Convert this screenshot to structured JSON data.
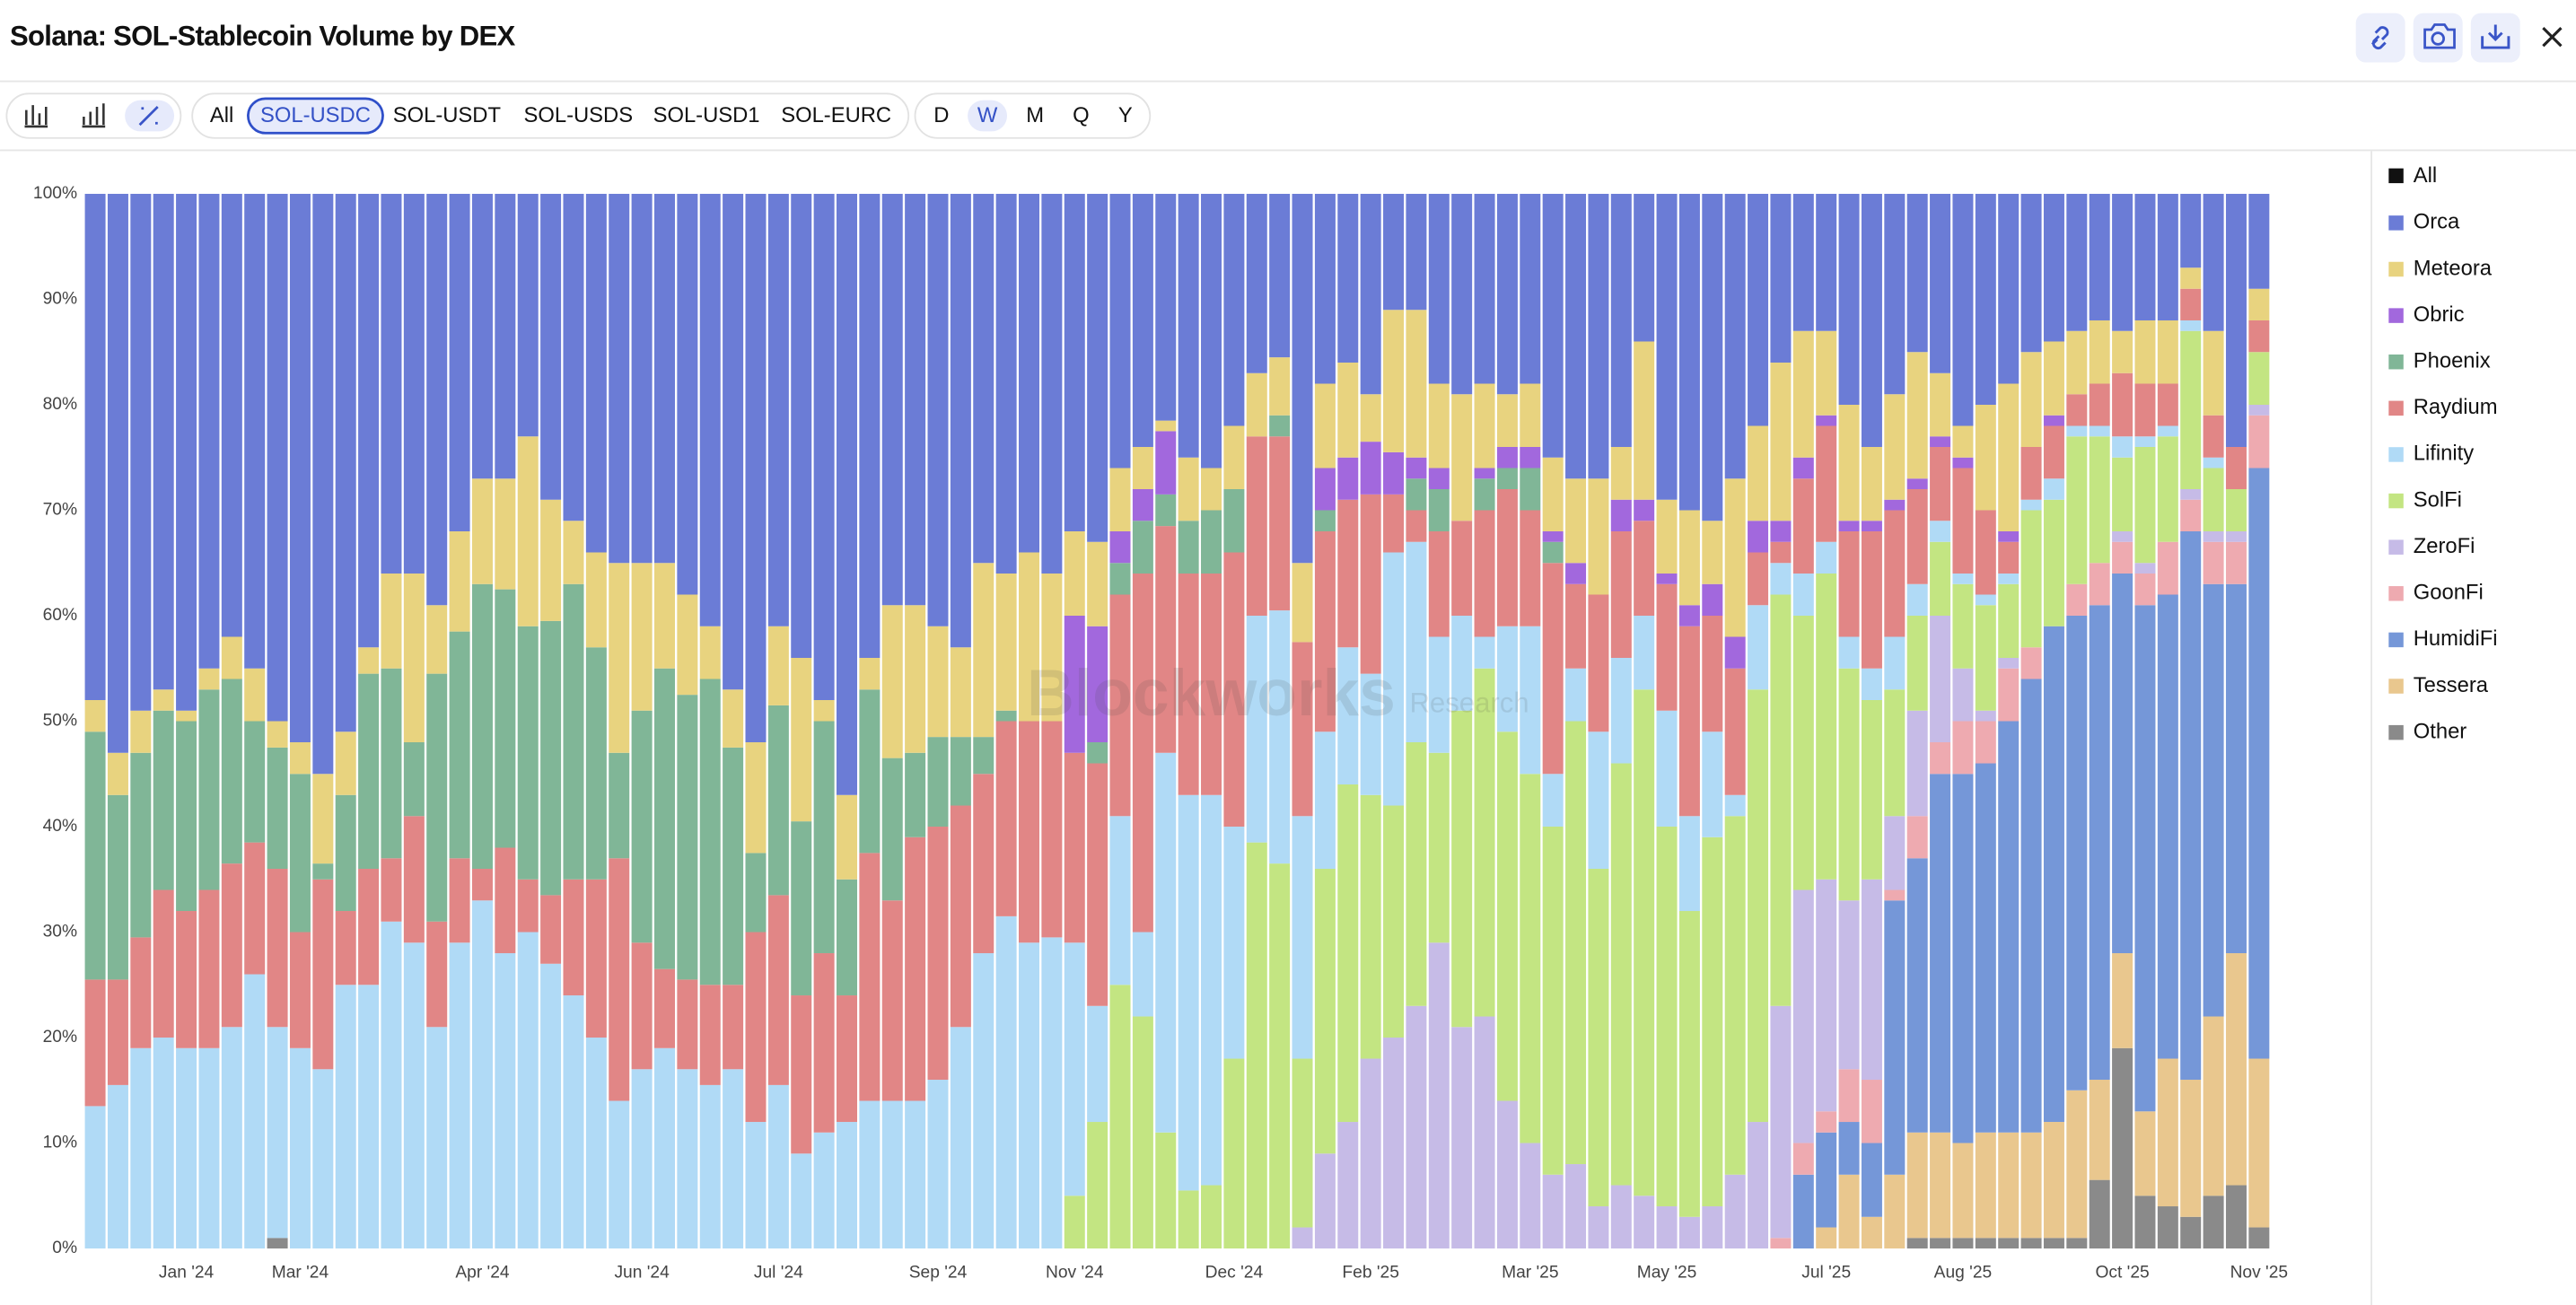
{
  "header": {
    "title": "Solana: SOL-Stablecoin Volume by DEX"
  },
  "toolbar": {
    "pairs": [
      {
        "label": "All",
        "selected": false
      },
      {
        "label": "SOL-USDC",
        "selected": true
      },
      {
        "label": "SOL-USDT",
        "selected": false
      },
      {
        "label": "SOL-USDS",
        "selected": false
      },
      {
        "label": "SOL-USD1",
        "selected": false
      },
      {
        "label": "SOL-EURC",
        "selected": false
      }
    ],
    "intervals": [
      {
        "label": "D",
        "selected": false
      },
      {
        "label": "W",
        "selected": true
      },
      {
        "label": "M",
        "selected": false
      },
      {
        "label": "Q",
        "selected": false
      },
      {
        "label": "Y",
        "selected": false
      }
    ]
  },
  "chart_data": {
    "type": "stacked_bar_percent",
    "watermark": {
      "brand": "Blockworks",
      "suffix": "Research"
    },
    "legend_toggle": "All",
    "legend_position": "right",
    "grid": false,
    "ylim": [
      0,
      100
    ],
    "yticks": [
      {
        "value": 0,
        "label": "0%"
      },
      {
        "value": 10,
        "label": "10%"
      },
      {
        "value": 20,
        "label": "20%"
      },
      {
        "value": 30,
        "label": "30%"
      },
      {
        "value": 40,
        "label": "40%"
      },
      {
        "value": 50,
        "label": "50%"
      },
      {
        "value": 60,
        "label": "60%"
      },
      {
        "value": 70,
        "label": "70%"
      },
      {
        "value": 80,
        "label": "80%"
      },
      {
        "value": 90,
        "label": "90%"
      },
      {
        "value": 100,
        "label": "100%"
      }
    ],
    "categories": [
      null,
      null,
      null,
      null,
      "Jan '24",
      null,
      null,
      null,
      null,
      "Mar '24",
      null,
      null,
      null,
      null,
      null,
      null,
      null,
      "Apr '24",
      null,
      null,
      null,
      null,
      null,
      null,
      "Jun '24",
      null,
      null,
      null,
      null,
      null,
      "Jul '24",
      null,
      null,
      null,
      null,
      null,
      null,
      "Sep '24",
      null,
      null,
      null,
      null,
      null,
      "Nov '24",
      null,
      null,
      null,
      null,
      null,
      null,
      "Dec '24",
      null,
      null,
      null,
      null,
      null,
      "Feb '25",
      null,
      null,
      null,
      null,
      null,
      null,
      "Mar '25",
      null,
      null,
      null,
      null,
      null,
      "May '25",
      null,
      null,
      null,
      null,
      null,
      null,
      "Jul '25",
      null,
      null,
      null,
      null,
      null,
      "Aug '25",
      null,
      null,
      null,
      null,
      null,
      null,
      "Oct '25",
      null,
      null,
      null,
      null,
      null,
      "Nov '25"
    ],
    "series": [
      {
        "name": "Orca",
        "color": "#6b7cd6",
        "values": [
          48,
          53,
          49,
          47,
          49,
          45,
          42,
          45,
          50,
          52,
          55,
          51,
          43,
          36,
          36,
          39,
          32,
          27,
          27,
          23,
          29,
          31,
          34,
          35,
          35,
          35,
          38,
          41,
          47,
          52,
          41,
          44,
          48,
          57,
          44,
          39,
          39,
          41,
          43,
          35,
          36,
          34,
          36,
          32,
          33,
          26,
          24,
          21.5,
          25,
          26,
          22,
          17,
          15.5,
          35,
          18,
          16,
          19,
          11,
          11,
          18,
          19,
          18,
          19,
          18,
          25,
          27,
          27,
          24,
          14,
          29,
          30,
          31,
          27,
          22,
          16,
          13,
          13,
          20,
          24,
          19,
          15,
          17,
          22,
          20,
          18,
          15,
          14,
          13,
          12,
          13,
          12,
          12,
          7,
          13,
          24,
          9
        ]
      },
      {
        "name": "Meteora",
        "color": "#e8d37f",
        "values": [
          3,
          4,
          4,
          2,
          1,
          2,
          4,
          5,
          2.5,
          3,
          8.5,
          6,
          2.5,
          9,
          16,
          6.5,
          9.5,
          10,
          10.5,
          18,
          11.5,
          6,
          9,
          18,
          14,
          10,
          9.5,
          5,
          5.5,
          10.5,
          7.5,
          15.5,
          2,
          8,
          3,
          14.5,
          14,
          10.5,
          8.5,
          16.5,
          13,
          16,
          14,
          8,
          8,
          6,
          4,
          1,
          6,
          4,
          6,
          6,
          5.5,
          7.5,
          8,
          9,
          4.5,
          13.5,
          14,
          8,
          12,
          8,
          5,
          6,
          7,
          8,
          11,
          5,
          15,
          7,
          9,
          6,
          15,
          9,
          15,
          12,
          8,
          11,
          7,
          10,
          12,
          6,
          3,
          10,
          14,
          9,
          7,
          6,
          6,
          4,
          6,
          6,
          2,
          8,
          0,
          3
        ]
      },
      {
        "name": "Obric",
        "color": "#a268dd",
        "values": [
          0,
          0,
          0,
          0,
          0,
          0,
          0,
          0,
          0,
          0,
          0,
          0,
          0,
          0,
          0,
          0,
          0,
          0,
          0,
          0,
          0,
          0,
          0,
          0,
          0,
          0,
          0,
          0,
          0,
          0,
          0,
          0,
          0,
          0,
          0,
          0,
          0,
          0,
          0,
          0,
          0,
          0,
          0,
          13,
          11,
          3,
          3,
          6,
          0,
          0,
          0,
          0,
          0,
          0,
          4,
          4,
          5,
          4,
          2,
          2,
          0,
          1,
          2,
          2,
          1,
          2,
          0,
          3,
          2,
          1,
          2,
          3,
          3,
          3,
          2,
          2,
          1,
          1,
          1,
          1,
          1,
          1,
          1,
          0,
          1,
          0,
          1,
          0,
          0,
          0,
          0,
          0,
          0,
          0,
          0,
          0
        ]
      },
      {
        "name": "Phoenix",
        "color": "#80b697",
        "values": [
          23.5,
          17.5,
          17.5,
          17,
          18,
          19,
          17.5,
          11.5,
          11.5,
          15,
          1.5,
          11,
          18.5,
          18,
          7,
          23.5,
          21.5,
          27,
          24.5,
          24,
          26,
          28,
          22,
          10,
          22,
          28.5,
          27,
          29,
          22.5,
          7.5,
          18,
          16.5,
          22,
          11,
          15.5,
          13.5,
          8,
          8.5,
          6.5,
          3.5,
          1,
          0,
          0,
          0,
          2,
          3,
          5,
          3,
          5,
          6,
          6,
          0,
          2,
          0,
          2,
          0,
          0,
          0,
          3,
          4,
          0,
          3,
          2,
          4,
          2,
          0,
          0,
          0,
          0,
          0,
          0,
          0,
          0,
          0,
          0,
          0,
          0,
          0,
          0,
          0,
          0,
          0,
          0,
          0,
          0,
          0,
          0,
          0,
          0,
          0,
          0,
          0,
          0,
          0,
          0,
          0
        ]
      },
      {
        "name": "Raydium",
        "color": "#e18686",
        "values": [
          12,
          10,
          10.5,
          14,
          13,
          15,
          15.5,
          12.5,
          15,
          11,
          18,
          7,
          11,
          6,
          12,
          10,
          8,
          3,
          10,
          5,
          6.5,
          11,
          15,
          23,
          12,
          7.5,
          8.5,
          9.5,
          8,
          18,
          18,
          15,
          17,
          12,
          23.5,
          19,
          25,
          24,
          21,
          17,
          18.5,
          21,
          20.5,
          18,
          23,
          21,
          34,
          21.5,
          21,
          21,
          26,
          17,
          16.5,
          16.5,
          19,
          14,
          17,
          5.5,
          3,
          10,
          9,
          12,
          13,
          11,
          20,
          8,
          13,
          12,
          9,
          12,
          18,
          11,
          12,
          5,
          2,
          9,
          11,
          10,
          13,
          12,
          9,
          7,
          10,
          8,
          3,
          5,
          5,
          3,
          4,
          6,
          5,
          4,
          3,
          4,
          4,
          3
        ]
      },
      {
        "name": "Lifinity",
        "color": "#b0daf6",
        "values": [
          13.5,
          15.5,
          19,
          20,
          19,
          19,
          21,
          26,
          20,
          19,
          17,
          25,
          25,
          31,
          29,
          21,
          29,
          33,
          28,
          30,
          27,
          24,
          20,
          14,
          17,
          19,
          17,
          15.5,
          17,
          12,
          15.5,
          9,
          11,
          12,
          14,
          14,
          14,
          16,
          21,
          28,
          31.5,
          29,
          29.5,
          24,
          11,
          16,
          8,
          36,
          37.5,
          37,
          22,
          21.5,
          24,
          23,
          13,
          13,
          11.5,
          24,
          19,
          11,
          9,
          3,
          10,
          14,
          5,
          5,
          13,
          10,
          7,
          11,
          9,
          10,
          2,
          8,
          3,
          4,
          3,
          3,
          3,
          5,
          3,
          2,
          1,
          1,
          1,
          1,
          2,
          1,
          1,
          2,
          1,
          1,
          1,
          1,
          0,
          0
        ]
      },
      {
        "name": "SolFi",
        "color": "#c3e582",
        "values": [
          0,
          0,
          0,
          0,
          0,
          0,
          0,
          0,
          0,
          0,
          0,
          0,
          0,
          0,
          0,
          0,
          0,
          0,
          0,
          0,
          0,
          0,
          0,
          0,
          0,
          0,
          0,
          0,
          0,
          0,
          0,
          0,
          0,
          0,
          0,
          0,
          0,
          0,
          0,
          0,
          0,
          0,
          0,
          5,
          12,
          25,
          22,
          11,
          5.5,
          6,
          18,
          38.5,
          36.5,
          16,
          27,
          32,
          25,
          22,
          25,
          18,
          30,
          33,
          35,
          35,
          33,
          42,
          32,
          40,
          48,
          36,
          29,
          35,
          34,
          41,
          39,
          26,
          29,
          22,
          17,
          12,
          9,
          7,
          8,
          10,
          7,
          13,
          12,
          14,
          12,
          7,
          11,
          10,
          15,
          6,
          4,
          5
        ]
      },
      {
        "name": "ZeroFi",
        "color": "#c6bbe7",
        "values": [
          0,
          0,
          0,
          0,
          0,
          0,
          0,
          0,
          0,
          0,
          0,
          0,
          0,
          0,
          0,
          0,
          0,
          0,
          0,
          0,
          0,
          0,
          0,
          0,
          0,
          0,
          0,
          0,
          0,
          0,
          0,
          0,
          0,
          0,
          0,
          0,
          0,
          0,
          0,
          0,
          0,
          0,
          0,
          0,
          0,
          0,
          0,
          0,
          0,
          0,
          0,
          0,
          0,
          2,
          9,
          12,
          18,
          20,
          23,
          29,
          21,
          22,
          14,
          10,
          7,
          8,
          4,
          6,
          5,
          4,
          3,
          4,
          7,
          12,
          22,
          24,
          22,
          16,
          19,
          7,
          10,
          12,
          5,
          1,
          1,
          0,
          0,
          0,
          0,
          1,
          1,
          0,
          1,
          1,
          1,
          1
        ]
      },
      {
        "name": "GoonFi",
        "color": "#eeaab0",
        "values": [
          0,
          0,
          0,
          0,
          0,
          0,
          0,
          0,
          0,
          0,
          0,
          0,
          0,
          0,
          0,
          0,
          0,
          0,
          0,
          0,
          0,
          0,
          0,
          0,
          0,
          0,
          0,
          0,
          0,
          0,
          0,
          0,
          0,
          0,
          0,
          0,
          0,
          0,
          0,
          0,
          0,
          0,
          0,
          0,
          0,
          0,
          0,
          0,
          0,
          0,
          0,
          0,
          0,
          0,
          0,
          0,
          0,
          0,
          0,
          0,
          0,
          0,
          0,
          0,
          0,
          0,
          0,
          0,
          0,
          0,
          0,
          0,
          0,
          0,
          1,
          3,
          2,
          5,
          6,
          1,
          4,
          3,
          5,
          4,
          5,
          3,
          0,
          3,
          4,
          3,
          3,
          5,
          3,
          4,
          4,
          5
        ]
      },
      {
        "name": "HumidiFi",
        "color": "#7597d8",
        "values": [
          0,
          0,
          0,
          0,
          0,
          0,
          0,
          0,
          0,
          0,
          0,
          0,
          0,
          0,
          0,
          0,
          0,
          0,
          0,
          0,
          0,
          0,
          0,
          0,
          0,
          0,
          0,
          0,
          0,
          0,
          0,
          0,
          0,
          0,
          0,
          0,
          0,
          0,
          0,
          0,
          0,
          0,
          0,
          0,
          0,
          0,
          0,
          0,
          0,
          0,
          0,
          0,
          0,
          0,
          0,
          0,
          0,
          0,
          0,
          0,
          0,
          0,
          0,
          0,
          0,
          0,
          0,
          0,
          0,
          0,
          0,
          0,
          0,
          0,
          0,
          7,
          9,
          5,
          7,
          26,
          26,
          34,
          35,
          35,
          39,
          43,
          47,
          45,
          45,
          36,
          48,
          44,
          52,
          41,
          35,
          56
        ]
      },
      {
        "name": "Tessera",
        "color": "#e9c78e",
        "values": [
          0,
          0,
          0,
          0,
          0,
          0,
          0,
          0,
          0,
          0,
          0,
          0,
          0,
          0,
          0,
          0,
          0,
          0,
          0,
          0,
          0,
          0,
          0,
          0,
          0,
          0,
          0,
          0,
          0,
          0,
          0,
          0,
          0,
          0,
          0,
          0,
          0,
          0,
          0,
          0,
          0,
          0,
          0,
          0,
          0,
          0,
          0,
          0,
          0,
          0,
          0,
          0,
          0,
          0,
          0,
          0,
          0,
          0,
          0,
          0,
          0,
          0,
          0,
          0,
          0,
          0,
          0,
          0,
          0,
          0,
          0,
          0,
          0,
          0,
          0,
          0,
          2,
          7,
          3,
          7,
          10,
          10,
          9,
          10,
          10,
          10,
          11,
          14,
          9.5,
          9,
          8,
          14,
          13,
          17,
          22,
          16
        ]
      },
      {
        "name": "Other",
        "color": "#8a8a8a",
        "values": [
          0,
          0,
          0,
          0,
          0,
          0,
          0,
          0,
          1,
          0,
          0,
          0,
          0,
          0,
          0,
          0,
          0,
          0,
          0,
          0,
          0,
          0,
          0,
          0,
          0,
          0,
          0,
          0,
          0,
          0,
          0,
          0,
          0,
          0,
          0,
          0,
          0,
          0,
          0,
          0,
          0,
          0,
          0,
          0,
          0,
          0,
          0,
          0,
          0,
          0,
          0,
          0,
          0,
          0,
          0,
          0,
          0,
          0,
          0,
          0,
          0,
          0,
          0,
          0,
          0,
          0,
          0,
          0,
          0,
          0,
          0,
          0,
          0,
          0,
          0,
          0,
          0,
          0,
          0,
          0,
          1,
          1,
          1,
          1,
          1,
          1,
          1,
          1,
          6.5,
          19,
          5,
          4,
          3,
          5,
          6,
          2
        ]
      }
    ]
  }
}
